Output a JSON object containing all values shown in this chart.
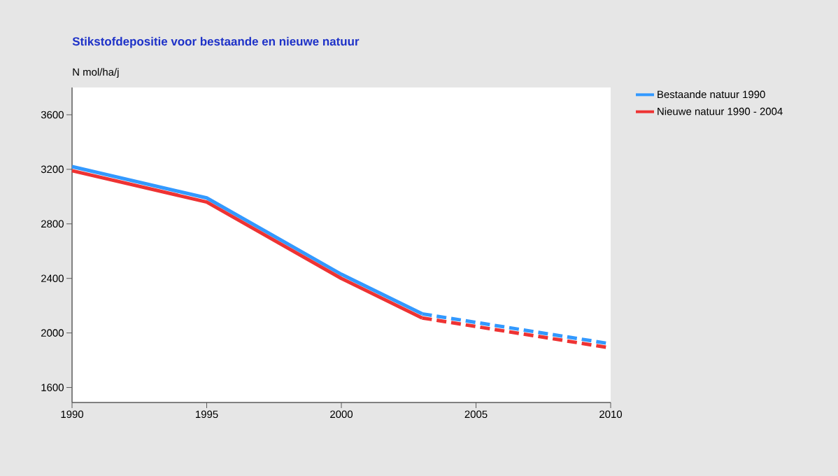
{
  "chart_data": {
    "type": "line",
    "title": "Stikstofdepositie voor bestaande en nieuwe natuur",
    "ylabel": "N mol/ha/j",
    "xlim": [
      1990,
      2010
    ],
    "xticks": [
      1990,
      1995,
      2000,
      2005,
      2010
    ],
    "ylim": [
      1490,
      3800
    ],
    "yticks": [
      1600,
      2000,
      2400,
      2800,
      3200,
      3600
    ],
    "legend": "right",
    "series": [
      {
        "name": "Bestaande natuur 1990",
        "color": "#3399ff",
        "line_style": "solid",
        "x": [
          1990,
          1995,
          2000,
          2003
        ],
        "values": [
          3220,
          2990,
          2430,
          2140
        ]
      },
      {
        "name": "Nieuwe natuur 1990 - 2004",
        "color": "#ee3333",
        "line_style": "solid",
        "x": [
          1990,
          1995,
          2000,
          2003
        ],
        "values": [
          3190,
          2960,
          2400,
          2110
        ]
      },
      {
        "color": "#3399ff",
        "line_style": "dashed",
        "x": [
          2003,
          2010
        ],
        "values": [
          2140,
          1920
        ]
      },
      {
        "color": "#ee3333",
        "line_style": "dashed",
        "x": [
          2003,
          2010
        ],
        "values": [
          2110,
          1890
        ]
      }
    ]
  }
}
